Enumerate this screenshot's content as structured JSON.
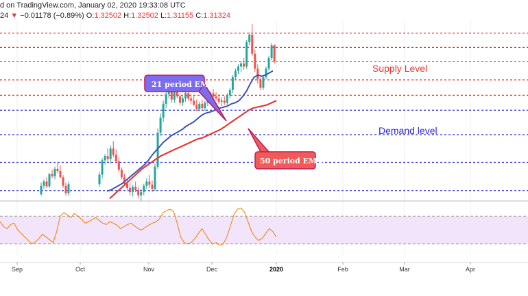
{
  "header": {
    "line1": "d on TradingView.com, January 02, 2020 19:33:08 UTC",
    "line2_prefix": "24",
    "change_arrow": "▼",
    "change": "−0.01178 (−0.89%)",
    "o_label": "O:",
    "o_value": "1.32502",
    "h_label": "H:",
    "h_value": "1.32502",
    "l_label": "L:",
    "l_value": "1.31155",
    "c_label": "C:",
    "c_value": "1.31324"
  },
  "annotations": {
    "supply": "Supply Level",
    "demand": "Demand level",
    "ema21": "21 period EMA",
    "ema50": "50 period EMA"
  },
  "colors": {
    "bull": "#26a69a",
    "bear": "#ef5350",
    "ema21": "#3f51b5",
    "ema50": "#e53935",
    "supply_line": "#e53935",
    "demand_line": "#2a2ae0",
    "rsi_line": "#f57c00",
    "rsi_band": "#f1e4fb",
    "ema21_box": "#7b6cf0",
    "ema50_box": "#f25a5a"
  },
  "chart_data": {
    "type": "candlestick",
    "x_ticks": [
      "Sep",
      "Oct",
      "Nov",
      "Dec",
      "2020",
      "Feb",
      "Mar",
      "Apr"
    ],
    "supply_levels": [
      1.3515,
      1.338,
      1.325,
      1.3075,
      1.293
    ],
    "demand_levels": [
      1.279,
      1.256,
      1.23,
      1.2035
    ],
    "price_range": [
      1.195,
      1.362
    ],
    "candles": [
      [
        1.2,
        1.211,
        1.1985,
        1.208
      ],
      [
        1.208,
        1.214,
        1.205,
        1.212
      ],
      [
        1.212,
        1.216,
        1.206,
        1.2075
      ],
      [
        1.2075,
        1.22,
        1.206,
        1.219
      ],
      [
        1.219,
        1.223,
        1.215,
        1.217
      ],
      [
        1.217,
        1.226,
        1.214,
        1.224
      ],
      [
        1.224,
        1.23,
        1.22,
        1.222
      ],
      [
        1.222,
        1.227,
        1.215,
        1.216
      ],
      [
        1.216,
        1.218,
        1.206,
        1.208
      ],
      [
        1.208,
        1.211,
        1.199,
        1.201
      ],
      [
        1.201,
        1.212,
        1.1985,
        1.2095
      ],
      [
        1.2095,
        1.221,
        1.207,
        1.2185
      ],
      [
        1.2185,
        1.234,
        1.215,
        1.232
      ],
      [
        1.232,
        1.238,
        1.228,
        1.236
      ],
      [
        1.236,
        1.243,
        1.23,
        1.233
      ],
      [
        1.233,
        1.246,
        1.229,
        1.243
      ],
      [
        1.243,
        1.25,
        1.235,
        1.237
      ],
      [
        1.237,
        1.242,
        1.229,
        1.231
      ],
      [
        1.231,
        1.235,
        1.221,
        1.223
      ],
      [
        1.223,
        1.225,
        1.214,
        1.216
      ],
      [
        1.216,
        1.219,
        1.208,
        1.21
      ],
      [
        1.21,
        1.213,
        1.204,
        1.206
      ],
      [
        1.206,
        1.211,
        1.199,
        1.202
      ],
      [
        1.202,
        1.209,
        1.198,
        1.207
      ],
      [
        1.207,
        1.212,
        1.202,
        1.204
      ],
      [
        1.204,
        1.207,
        1.196,
        1.199
      ],
      [
        1.199,
        1.205,
        1.194,
        1.202
      ],
      [
        1.202,
        1.21,
        1.199,
        1.208
      ],
      [
        1.208,
        1.215,
        1.205,
        1.212
      ],
      [
        1.212,
        1.218,
        1.206,
        1.209
      ],
      [
        1.209,
        1.213,
        1.202,
        1.205
      ],
      [
        1.205,
        1.229,
        1.203,
        1.226
      ],
      [
        1.226,
        1.262,
        1.224,
        1.258
      ],
      [
        1.258,
        1.276,
        1.255,
        1.272
      ],
      [
        1.272,
        1.288,
        1.268,
        1.285
      ],
      [
        1.285,
        1.296,
        1.281,
        1.294
      ],
      [
        1.294,
        1.302,
        1.29,
        1.298
      ],
      [
        1.298,
        1.304,
        1.286,
        1.289
      ],
      [
        1.289,
        1.3,
        1.286,
        1.297
      ],
      [
        1.297,
        1.301,
        1.29,
        1.292
      ],
      [
        1.292,
        1.295,
        1.284,
        1.286
      ],
      [
        1.286,
        1.292,
        1.283,
        1.29
      ],
      [
        1.29,
        1.297,
        1.287,
        1.295
      ],
      [
        1.295,
        1.298,
        1.288,
        1.29
      ],
      [
        1.29,
        1.294,
        1.285,
        1.288
      ],
      [
        1.288,
        1.293,
        1.283,
        1.284
      ],
      [
        1.284,
        1.289,
        1.278,
        1.28
      ],
      [
        1.28,
        1.287,
        1.278,
        1.285
      ],
      [
        1.285,
        1.289,
        1.279,
        1.281
      ],
      [
        1.281,
        1.288,
        1.278,
        1.286
      ],
      [
        1.286,
        1.294,
        1.283,
        1.292
      ],
      [
        1.292,
        1.297,
        1.288,
        1.295
      ],
      [
        1.295,
        1.299,
        1.29,
        1.292
      ],
      [
        1.292,
        1.296,
        1.288,
        1.29
      ],
      [
        1.29,
        1.294,
        1.285,
        1.287
      ],
      [
        1.287,
        1.291,
        1.283,
        1.288
      ],
      [
        1.288,
        1.292,
        1.284,
        1.286
      ],
      [
        1.286,
        1.295,
        1.284,
        1.293
      ],
      [
        1.293,
        1.3,
        1.29,
        1.298
      ],
      [
        1.298,
        1.312,
        1.295,
        1.31
      ],
      [
        1.31,
        1.318,
        1.307,
        1.316
      ],
      [
        1.316,
        1.322,
        1.313,
        1.32
      ],
      [
        1.32,
        1.325,
        1.315,
        1.323
      ],
      [
        1.323,
        1.328,
        1.317,
        1.32
      ],
      [
        1.32,
        1.345,
        1.318,
        1.343
      ],
      [
        1.343,
        1.352,
        1.34,
        1.35
      ],
      [
        1.35,
        1.36,
        1.33,
        1.332
      ],
      [
        1.332,
        1.336,
        1.315,
        1.318
      ],
      [
        1.318,
        1.322,
        1.304,
        1.308
      ],
      [
        1.308,
        1.31,
        1.298,
        1.3
      ],
      [
        1.3,
        1.312,
        1.298,
        1.31
      ],
      [
        1.31,
        1.32,
        1.308,
        1.318
      ],
      [
        1.318,
        1.33,
        1.316,
        1.328
      ],
      [
        1.328,
        1.342,
        1.326,
        1.34
      ],
      [
        1.34,
        1.341,
        1.323,
        1.325
      ]
    ],
    "ema21": [
      1.203,
      1.204,
      1.206,
      1.208,
      1.21,
      1.213,
      1.216,
      1.219,
      1.222,
      1.225,
      1.228,
      1.232,
      1.237,
      1.241,
      1.245,
      1.249,
      1.252,
      1.255,
      1.257,
      1.259,
      1.261,
      1.264,
      1.266,
      1.268,
      1.271,
      1.274,
      1.276,
      1.277,
      1.278,
      1.28,
      1.281,
      1.282,
      1.283,
      1.285,
      1.286,
      1.288,
      1.292,
      1.297,
      1.304,
      1.31,
      1.312,
      1.311,
      1.312,
      1.314,
      1.316
    ],
    "ema50": [
      1.196,
      1.2,
      1.204,
      1.208,
      1.212,
      1.216,
      1.22,
      1.224,
      1.227,
      1.23,
      1.233,
      1.236,
      1.238,
      1.24,
      1.242,
      1.244,
      1.246,
      1.248,
      1.25,
      1.252,
      1.253,
      1.255,
      1.257,
      1.259,
      1.261,
      1.264,
      1.267,
      1.27,
      1.273,
      1.276,
      1.279,
      1.281,
      1.282,
      1.283,
      1.284,
      1.286,
      1.288
    ],
    "rsi": [
      62,
      55,
      52,
      58,
      60,
      50,
      45,
      40,
      35,
      30,
      33,
      38,
      44,
      40,
      36,
      32,
      48,
      70,
      75,
      72,
      68,
      74,
      70,
      66,
      60,
      62,
      65,
      68,
      64,
      60,
      58,
      62,
      60,
      57,
      52,
      55,
      58,
      60,
      56,
      52,
      50,
      54,
      57,
      60,
      62,
      66,
      75,
      78,
      80,
      77,
      60,
      40,
      32,
      30,
      32,
      38,
      45,
      52,
      44,
      36,
      30,
      32,
      28,
      30,
      40,
      55,
      72,
      80,
      82,
      76,
      62,
      48,
      40,
      35,
      38,
      45,
      52,
      48,
      40
    ],
    "rsi_band": [
      30,
      70
    ],
    "rsi_range": [
      15,
      90
    ]
  }
}
